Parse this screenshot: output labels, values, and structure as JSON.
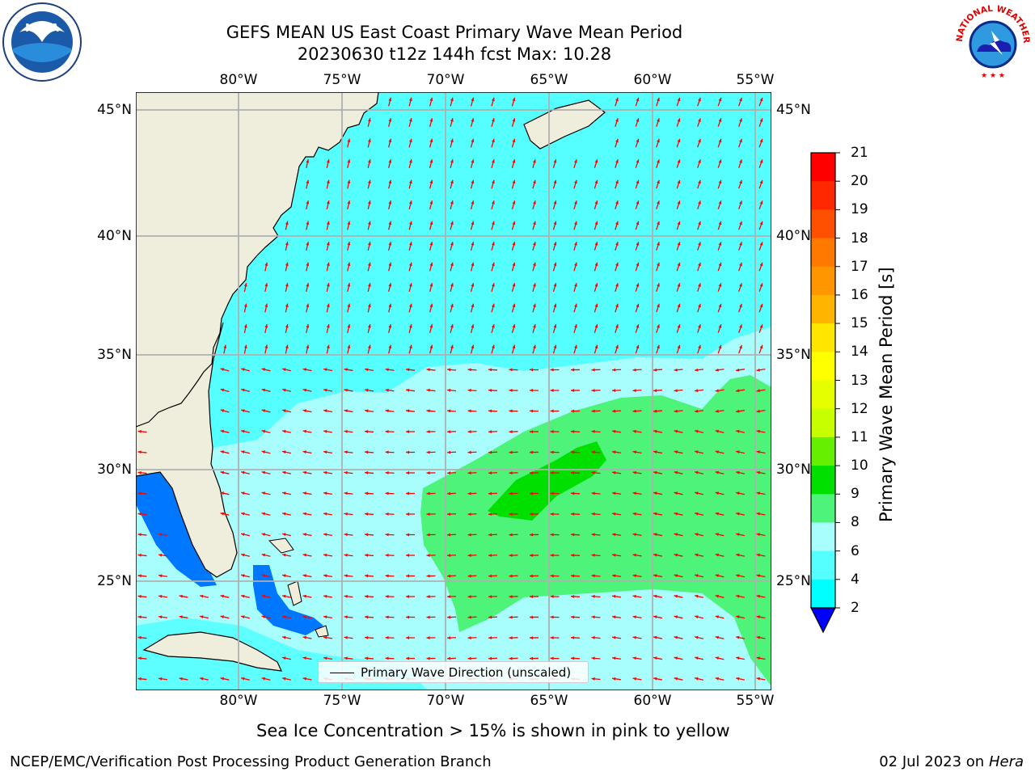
{
  "title": {
    "line1": "GEFS MEAN US East Coast Primary Wave Mean Period",
    "line2": "20230630 t12z 144h fcst   Max: 10.28"
  },
  "logos": {
    "left": {
      "name": "noaa-logo",
      "text": "NOAA"
    },
    "right": {
      "name": "nws-logo",
      "text": "NATIONAL WEATHER SERVICE"
    }
  },
  "map": {
    "lon_labels": [
      "80°W",
      "75°W",
      "70°W",
      "65°W",
      "60°W",
      "55°W"
    ],
    "lat_labels": [
      "45°N",
      "40°N",
      "35°N",
      "30°N",
      "25°N"
    ],
    "colors": {
      "land": "#efeedc",
      "ocean_6_8": "#55ffff",
      "ocean_8_9": "#a8fdfd",
      "ocean_9_10": "#4ef47a",
      "ocean_10_11": "#00e000",
      "ocean_2_4": "#0077ff",
      "ocean_4_6": "#00ffff",
      "arrow": "#ff0000",
      "grid": "#b0b0b0"
    }
  },
  "legend": {
    "label": "Primary Wave Direction (unscaled)"
  },
  "colorbar": {
    "title": "Primary Wave Mean Period [s]",
    "ticks": [
      "21",
      "20",
      "19",
      "18",
      "17",
      "16",
      "15",
      "14",
      "13",
      "12",
      "11",
      "10",
      "9",
      "8",
      "6",
      "4",
      "2"
    ],
    "colors": [
      "#ff0000",
      "#ff2800",
      "#ff5000",
      "#ff7800",
      "#ff9600",
      "#ffb400",
      "#ffe600",
      "#ffff00",
      "#e6ff00",
      "#c8ff00",
      "#64f000",
      "#00e000",
      "#4ef47a",
      "#a8fdfd",
      "#55ffff",
      "#00ffff",
      "#0077ff"
    ],
    "extend_color": "#0000ff"
  },
  "caption": "Sea Ice Concentration > 15% is shown in pink to yellow",
  "footer": {
    "left": "NCEP/EMC/Verification Post Processing Product Generation Branch",
    "date": "02 Jul 2023 on ",
    "host": "Hera"
  }
}
